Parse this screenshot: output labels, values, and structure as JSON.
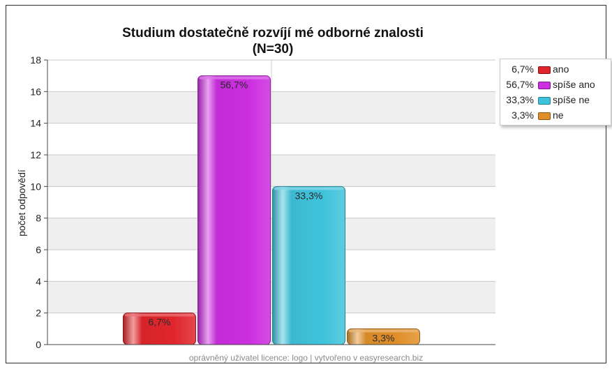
{
  "chart_data": {
    "type": "bar",
    "title": "Studium dostatečně rozvíjí mé odborné znalosti",
    "subtitle": "(N=30)",
    "ylabel": "počet odpovědí",
    "xlabel": "",
    "ylim": [
      0,
      18
    ],
    "yticks": [
      "0",
      "2",
      "4",
      "6",
      "8",
      "10",
      "12",
      "14",
      "16",
      "18"
    ],
    "grid": true,
    "legend_position": "top-right",
    "categories": [
      "ano",
      "spíše ano",
      "spíše ne",
      "ne"
    ],
    "values": [
      2,
      17,
      10,
      1
    ],
    "labels": [
      "6,7%",
      "56,7%",
      "33,3%",
      "3,3%"
    ],
    "colors": [
      "#e0262c",
      "#cc2ee0",
      "#3fc3dc",
      "#e0902a"
    ]
  },
  "legend": {
    "items": [
      {
        "pct": "6,7%",
        "name": "ano",
        "color": "#e0262c"
      },
      {
        "pct": "56,7%",
        "name": "spíše ano",
        "color": "#cc2ee0"
      },
      {
        "pct": "33,3%",
        "name": "spíše ne",
        "color": "#3fc3dc"
      },
      {
        "pct": "3,3%",
        "name": "ne",
        "color": "#e0902a"
      }
    ]
  },
  "footer": "oprávněný uživatel licence: logo | vytvořeno v easyresearch.biz"
}
